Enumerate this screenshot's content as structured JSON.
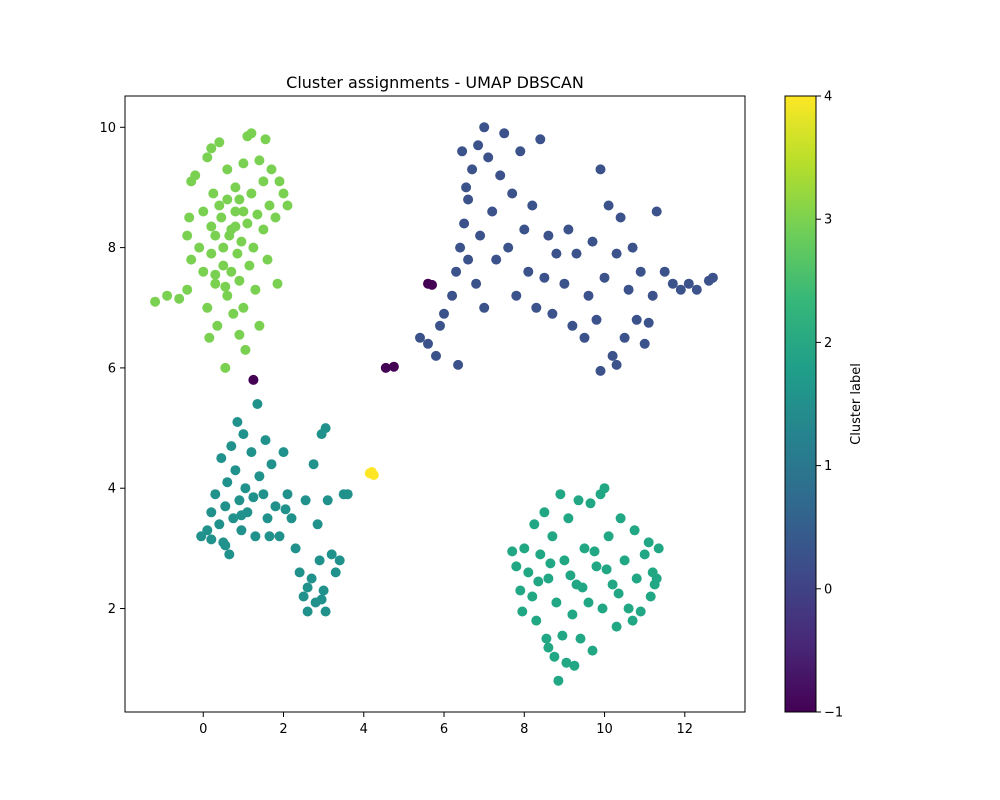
{
  "chart_data": {
    "type": "scatter",
    "title": "Cluster assignments - UMAP DBSCAN",
    "xlabel": "",
    "ylabel": "",
    "xlim": [
      -1.95,
      13.5
    ],
    "ylim": [
      0.28,
      10.52
    ],
    "xticks": [
      0,
      2,
      4,
      6,
      8,
      10,
      12
    ],
    "yticks": [
      2,
      4,
      6,
      8,
      10
    ],
    "grid": false,
    "colorbar": {
      "label": "Cluster label",
      "range": [
        -1,
        4
      ],
      "ticks": [
        -1,
        0,
        1,
        2,
        3,
        4
      ],
      "colormap": "viridis",
      "stops": [
        "#440154",
        "#482878",
        "#3e4989",
        "#31688e",
        "#26828e",
        "#1f9e89",
        "#35b779",
        "#6ece58",
        "#b5de2b",
        "#fde725"
      ]
    },
    "cluster_colors": {
      "-1": "#440154",
      "0": "#3b528b",
      "1": "#21918c",
      "2": "#21a784",
      "3": "#7ad151",
      "4": "#fde725"
    },
    "clusters": [
      {
        "label": 3,
        "points": [
          [
            -1.2,
            7.1
          ],
          [
            -0.9,
            7.2
          ],
          [
            -0.6,
            7.15
          ],
          [
            -0.4,
            7.3
          ],
          [
            -0.3,
            7.8
          ],
          [
            -0.4,
            8.2
          ],
          [
            -0.35,
            8.5
          ],
          [
            -0.3,
            9.1
          ],
          [
            -0.2,
            9.2
          ],
          [
            -0.1,
            8.0
          ],
          [
            0.0,
            8.6
          ],
          [
            0.0,
            7.6
          ],
          [
            0.1,
            9.5
          ],
          [
            0.1,
            7.0
          ],
          [
            0.15,
            6.5
          ],
          [
            0.2,
            9.65
          ],
          [
            0.25,
            8.9
          ],
          [
            0.3,
            8.2
          ],
          [
            0.3,
            7.4
          ],
          [
            0.35,
            6.7
          ],
          [
            0.4,
            9.75
          ],
          [
            0.45,
            8.5
          ],
          [
            0.5,
            8.0
          ],
          [
            0.5,
            7.7
          ],
          [
            0.55,
            6.0
          ],
          [
            0.6,
            9.3
          ],
          [
            0.6,
            8.8
          ],
          [
            0.6,
            7.2
          ],
          [
            0.7,
            8.3
          ],
          [
            0.7,
            7.6
          ],
          [
            0.75,
            6.9
          ],
          [
            0.8,
            9.0
          ],
          [
            0.8,
            8.6
          ],
          [
            0.85,
            7.9
          ],
          [
            0.9,
            7.45
          ],
          [
            0.9,
            6.55
          ],
          [
            0.95,
            8.1
          ],
          [
            1.0,
            9.4
          ],
          [
            1.0,
            7.0
          ],
          [
            1.05,
            6.3
          ],
          [
            1.1,
            9.85
          ],
          [
            1.1,
            8.4
          ],
          [
            1.15,
            7.7
          ],
          [
            1.2,
            9.9
          ],
          [
            1.2,
            8.9
          ],
          [
            1.25,
            8.0
          ],
          [
            1.3,
            7.3
          ],
          [
            1.35,
            8.55
          ],
          [
            1.4,
            9.45
          ],
          [
            1.4,
            6.7
          ],
          [
            1.5,
            8.3
          ],
          [
            1.5,
            9.1
          ],
          [
            1.55,
            9.8
          ],
          [
            1.6,
            7.8
          ],
          [
            1.65,
            8.7
          ],
          [
            1.7,
            9.3
          ],
          [
            1.8,
            8.5
          ],
          [
            1.85,
            7.4
          ],
          [
            1.9,
            9.1
          ],
          [
            2.0,
            8.9
          ],
          [
            2.1,
            8.7
          ],
          [
            0.2,
            7.9
          ],
          [
            0.4,
            8.7
          ],
          [
            0.65,
            8.2
          ],
          [
            0.9,
            8.8
          ],
          [
            0.3,
            7.55
          ],
          [
            0.55,
            7.35
          ],
          [
            0.8,
            8.35
          ],
          [
            1.0,
            8.6
          ],
          [
            0.2,
            8.35
          ]
        ]
      },
      {
        "label": 0,
        "points": [
          [
            5.4,
            6.5
          ],
          [
            5.6,
            6.4
          ],
          [
            5.8,
            6.2
          ],
          [
            5.9,
            6.7
          ],
          [
            6.0,
            6.9
          ],
          [
            6.2,
            7.2
          ],
          [
            6.3,
            7.6
          ],
          [
            6.35,
            6.05
          ],
          [
            6.4,
            8.0
          ],
          [
            6.45,
            9.6
          ],
          [
            6.5,
            8.4
          ],
          [
            6.55,
            9.0
          ],
          [
            6.6,
            8.8
          ],
          [
            6.6,
            7.8
          ],
          [
            6.7,
            9.3
          ],
          [
            6.8,
            7.4
          ],
          [
            6.85,
            9.7
          ],
          [
            6.9,
            8.2
          ],
          [
            7.0,
            10.0
          ],
          [
            7.0,
            7.0
          ],
          [
            7.1,
            9.5
          ],
          [
            7.2,
            8.6
          ],
          [
            7.3,
            7.8
          ],
          [
            7.4,
            9.2
          ],
          [
            7.5,
            9.9
          ],
          [
            7.6,
            8.0
          ],
          [
            7.7,
            8.9
          ],
          [
            7.8,
            7.2
          ],
          [
            7.9,
            9.6
          ],
          [
            8.0,
            8.3
          ],
          [
            8.1,
            7.6
          ],
          [
            8.2,
            8.7
          ],
          [
            8.3,
            7.0
          ],
          [
            8.4,
            9.8
          ],
          [
            8.5,
            7.5
          ],
          [
            8.6,
            8.2
          ],
          [
            8.7,
            6.9
          ],
          [
            8.8,
            7.9
          ],
          [
            9.0,
            7.4
          ],
          [
            9.1,
            8.3
          ],
          [
            9.2,
            6.7
          ],
          [
            9.3,
            7.9
          ],
          [
            9.5,
            6.5
          ],
          [
            9.6,
            7.2
          ],
          [
            9.7,
            8.1
          ],
          [
            9.8,
            6.8
          ],
          [
            9.9,
            9.3
          ],
          [
            10.0,
            7.5
          ],
          [
            10.1,
            8.7
          ],
          [
            10.2,
            6.2
          ],
          [
            10.3,
            7.9
          ],
          [
            10.4,
            8.5
          ],
          [
            10.5,
            6.5
          ],
          [
            10.6,
            7.3
          ],
          [
            10.7,
            8.0
          ],
          [
            10.8,
            6.8
          ],
          [
            10.9,
            7.6
          ],
          [
            11.0,
            6.4
          ],
          [
            11.2,
            7.2
          ],
          [
            11.3,
            8.6
          ],
          [
            11.5,
            7.6
          ],
          [
            11.7,
            7.4
          ],
          [
            11.9,
            7.3
          ],
          [
            12.1,
            7.4
          ],
          [
            12.3,
            7.3
          ],
          [
            12.6,
            7.45
          ],
          [
            12.7,
            7.5
          ],
          [
            9.9,
            5.95
          ],
          [
            10.3,
            6.05
          ],
          [
            11.1,
            6.75
          ]
        ]
      },
      {
        "label": -1,
        "points": [
          [
            1.25,
            5.8
          ],
          [
            4.55,
            6.0
          ],
          [
            4.75,
            6.02
          ],
          [
            5.6,
            7.4
          ],
          [
            5.7,
            7.38
          ]
        ]
      },
      {
        "label": 1,
        "points": [
          [
            -0.05,
            3.2
          ],
          [
            0.1,
            3.3
          ],
          [
            0.2,
            3.6
          ],
          [
            0.3,
            3.9
          ],
          [
            0.4,
            3.4
          ],
          [
            0.45,
            4.5
          ],
          [
            0.5,
            3.1
          ],
          [
            0.55,
            3.7
          ],
          [
            0.6,
            4.1
          ],
          [
            0.65,
            2.9
          ],
          [
            0.7,
            4.7
          ],
          [
            0.75,
            3.5
          ],
          [
            0.8,
            4.3
          ],
          [
            0.85,
            5.1
          ],
          [
            0.9,
            3.8
          ],
          [
            0.95,
            3.3
          ],
          [
            1.0,
            4.9
          ],
          [
            1.05,
            4.0
          ],
          [
            1.1,
            3.6
          ],
          [
            1.2,
            4.6
          ],
          [
            1.3,
            3.2
          ],
          [
            1.35,
            5.4
          ],
          [
            1.4,
            4.2
          ],
          [
            1.5,
            3.9
          ],
          [
            1.55,
            4.8
          ],
          [
            1.6,
            3.5
          ],
          [
            1.7,
            4.4
          ],
          [
            1.8,
            3.7
          ],
          [
            1.9,
            3.2
          ],
          [
            2.0,
            4.6
          ],
          [
            2.1,
            3.9
          ],
          [
            2.2,
            3.5
          ],
          [
            2.3,
            3.0
          ],
          [
            2.4,
            2.6
          ],
          [
            2.5,
            2.2
          ],
          [
            2.55,
            3.8
          ],
          [
            2.6,
            1.95
          ],
          [
            2.7,
            2.5
          ],
          [
            2.75,
            4.4
          ],
          [
            2.8,
            2.1
          ],
          [
            2.85,
            3.4
          ],
          [
            2.9,
            2.8
          ],
          [
            2.95,
            4.9
          ],
          [
            3.0,
            2.3
          ],
          [
            3.05,
            5.0
          ],
          [
            3.1,
            3.8
          ],
          [
            3.2,
            2.9
          ],
          [
            3.3,
            2.6
          ],
          [
            3.4,
            2.8
          ],
          [
            3.5,
            3.9
          ],
          [
            3.6,
            3.9
          ],
          [
            0.2,
            3.15
          ],
          [
            0.55,
            3.05
          ],
          [
            0.95,
            3.55
          ],
          [
            1.25,
            3.85
          ],
          [
            1.65,
            3.2
          ],
          [
            2.05,
            3.65
          ],
          [
            2.6,
            2.35
          ],
          [
            3.05,
            1.95
          ],
          [
            2.95,
            2.15
          ]
        ]
      },
      {
        "label": 4,
        "points": [
          [
            4.15,
            4.25
          ],
          [
            4.25,
            4.22
          ],
          [
            4.2,
            4.27
          ]
        ]
      },
      {
        "label": 2,
        "points": [
          [
            7.7,
            2.95
          ],
          [
            7.8,
            2.7
          ],
          [
            7.9,
            2.3
          ],
          [
            7.95,
            1.95
          ],
          [
            8.0,
            3.0
          ],
          [
            8.1,
            2.6
          ],
          [
            8.2,
            2.2
          ],
          [
            8.25,
            3.4
          ],
          [
            8.3,
            1.8
          ],
          [
            8.4,
            2.9
          ],
          [
            8.5,
            3.6
          ],
          [
            8.55,
            1.5
          ],
          [
            8.6,
            2.5
          ],
          [
            8.7,
            3.2
          ],
          [
            8.75,
            1.2
          ],
          [
            8.8,
            2.1
          ],
          [
            8.85,
            0.8
          ],
          [
            8.9,
            3.9
          ],
          [
            9.0,
            2.8
          ],
          [
            9.05,
            1.1
          ],
          [
            9.1,
            3.5
          ],
          [
            9.2,
            1.9
          ],
          [
            9.3,
            2.4
          ],
          [
            9.35,
            3.8
          ],
          [
            9.4,
            1.5
          ],
          [
            9.5,
            3.0
          ],
          [
            9.6,
            2.1
          ],
          [
            9.65,
            3.75
          ],
          [
            9.7,
            1.3
          ],
          [
            9.8,
            2.7
          ],
          [
            9.9,
            3.9
          ],
          [
            9.95,
            2.0
          ],
          [
            10.0,
            4.0
          ],
          [
            10.1,
            3.2
          ],
          [
            10.2,
            2.4
          ],
          [
            10.3,
            1.7
          ],
          [
            10.4,
            3.5
          ],
          [
            10.5,
            2.8
          ],
          [
            10.6,
            2.0
          ],
          [
            10.7,
            1.8
          ],
          [
            10.75,
            3.3
          ],
          [
            10.8,
            2.5
          ],
          [
            10.9,
            1.95
          ],
          [
            11.0,
            2.9
          ],
          [
            11.1,
            3.1
          ],
          [
            11.15,
            2.2
          ],
          [
            11.2,
            2.6
          ],
          [
            11.3,
            2.5
          ],
          [
            11.35,
            3.0
          ],
          [
            11.25,
            2.4
          ],
          [
            8.35,
            2.45
          ],
          [
            8.65,
            2.75
          ],
          [
            9.15,
            2.55
          ],
          [
            9.45,
            2.35
          ],
          [
            9.75,
            2.95
          ],
          [
            10.05,
            2.65
          ],
          [
            10.35,
            2.25
          ],
          [
            8.95,
            1.55
          ],
          [
            8.6,
            1.35
          ],
          [
            9.25,
            1.05
          ]
        ]
      }
    ]
  }
}
